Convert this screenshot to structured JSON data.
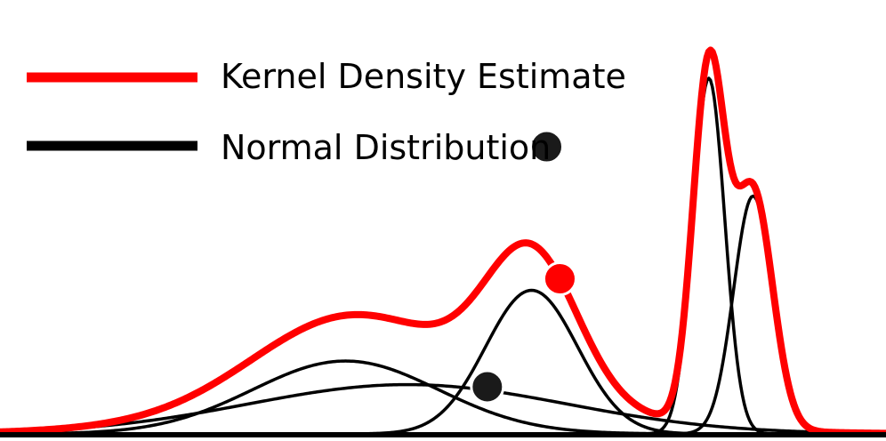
{
  "chart_data": {
    "type": "line",
    "title": "",
    "xlabel": "",
    "ylabel": "",
    "xlim": [
      0,
      10
    ],
    "ylim": [
      0,
      1
    ],
    "grid": false,
    "legend_placement": "top-left",
    "colors": {
      "kde": "#ff0000",
      "normal": "#000000",
      "baseline": "#000000"
    },
    "legend": [
      {
        "label": "Kernel Density Estimate",
        "color": "#ff0000"
      },
      {
        "label": "Normal Distribution",
        "color": "#000000"
      }
    ],
    "components": [
      {
        "mean": 3.9,
        "sd": 1.05,
        "peak": 0.17
      },
      {
        "mean": 4.6,
        "sd": 1.8,
        "peak": 0.115
      },
      {
        "mean": 6.0,
        "sd": 0.52,
        "peak": 0.335
      },
      {
        "mean": 8.0,
        "sd": 0.18,
        "peak": 0.83
      },
      {
        "mean": 8.5,
        "sd": 0.22,
        "peak": 0.555
      }
    ],
    "series": [
      {
        "name": "Kernel Density Estimate",
        "role": "kde",
        "color": "#ff0000"
      },
      {
        "name": "Normal Distribution",
        "role": "normal",
        "color": "#000000"
      }
    ],
    "markers": [
      {
        "x": 6.32,
        "on": "kde",
        "color": "#ff0000"
      },
      {
        "x": 5.5,
        "y": 0.11,
        "color": "#1a1a1a"
      },
      {
        "x": 6.17,
        "y": 0.67,
        "color": "#1a1a1a"
      }
    ]
  }
}
